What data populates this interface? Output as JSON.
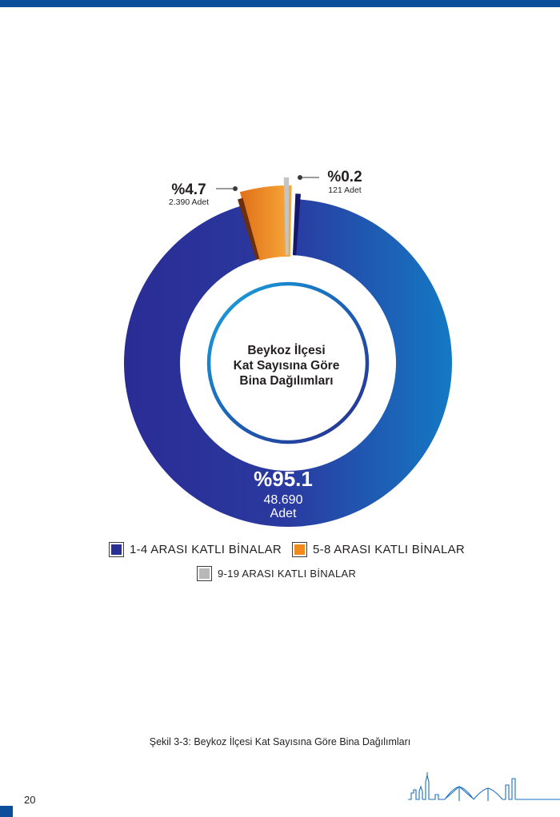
{
  "chart_data": {
    "type": "pie",
    "title": "Beykoz İlçesi Kat Sayısına Göre Bina Dağılımları",
    "title_lines": [
      "Beykoz İlçesi",
      "Kat Sayısına Göre",
      "Bina Dağılımları"
    ],
    "series": [
      {
        "name": "1-4 ARASI KATLI BİNALAR",
        "percent_label": "%95.1",
        "count_label": "48.690",
        "unit": "Adet",
        "count": 48690,
        "percent": 95.1,
        "color": "#2a2f96"
      },
      {
        "name": "5-8 ARASI KATLI BİNALAR",
        "percent_label": "%4.7",
        "count_label": "2.390",
        "unit": "Adet",
        "count": 2390,
        "percent": 4.7,
        "color": "#f08a1c"
      },
      {
        "name": "9-19 ARASI KATLI BİNALAR",
        "percent_label": "%0.2",
        "count_label": "121",
        "unit": "Adet",
        "count": 121,
        "percent": 0.2,
        "color": "#b8b8b8"
      }
    ],
    "legend_position": "bottom"
  },
  "legend": {
    "item1": "1-4 ARASI KATLI BİNALAR",
    "item2": "5-8 ARASI KATLI BİNALAR",
    "item3": "9-19 ARASI KATLI BİNALAR"
  },
  "caption": "Şekil 3-3: Beykoz İlçesi Kat Sayısına Göre Bina Dağılımları",
  "page_number": "20",
  "colors": {
    "brand_blue": "#0b4f9c",
    "slice_blue_dark": "#2a2f96",
    "slice_blue_light": "#1475c2",
    "slice_orange": "#f08a1c",
    "slice_gray": "#b8b8b8"
  }
}
